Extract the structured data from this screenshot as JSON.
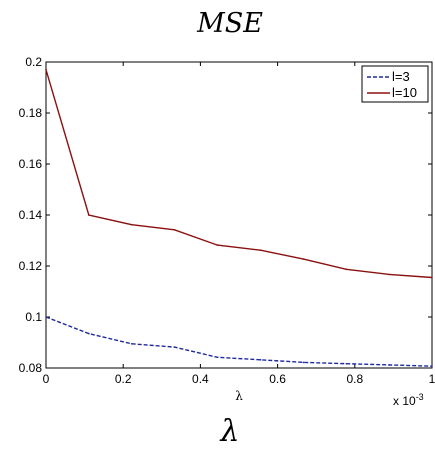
{
  "chart_data": {
    "type": "line",
    "title": "MSE",
    "xlabel": "λ",
    "xlabel_large": "λ",
    "x_multiplier": "x 10",
    "x_multiplier_exp": "-3",
    "xlim": [
      0,
      1
    ],
    "ylim": [
      0.08,
      0.2
    ],
    "xticks": [
      "0",
      "0.2",
      "0.4",
      "0.6",
      "0.8",
      "1"
    ],
    "xtick_values": [
      0,
      0.2,
      0.4,
      0.6,
      0.8,
      1
    ],
    "yticks": [
      "0.08",
      "0.1",
      "0.12",
      "0.14",
      "0.16",
      "0.18",
      "0.2"
    ],
    "ytick_values": [
      0.08,
      0.1,
      0.12,
      0.14,
      0.16,
      0.18,
      0.2
    ],
    "grid": false,
    "legend_position": "top-right",
    "x": [
      0,
      0.111,
      0.222,
      0.333,
      0.444,
      0.556,
      0.667,
      0.778,
      0.889,
      1
    ],
    "series": [
      {
        "name": "l=3",
        "color": "#1f2a9a",
        "style": "dashed",
        "values": [
          0.1,
          0.0935,
          0.0895,
          0.0882,
          0.0842,
          0.0832,
          0.0822,
          0.0817,
          0.0812,
          0.0807
        ]
      },
      {
        "name": "l=10",
        "color": "#8b1010",
        "style": "solid",
        "values": [
          0.197,
          0.14,
          0.1362,
          0.1342,
          0.1282,
          0.1262,
          0.1227,
          0.1187,
          0.1167,
          0.1155
        ]
      }
    ]
  }
}
